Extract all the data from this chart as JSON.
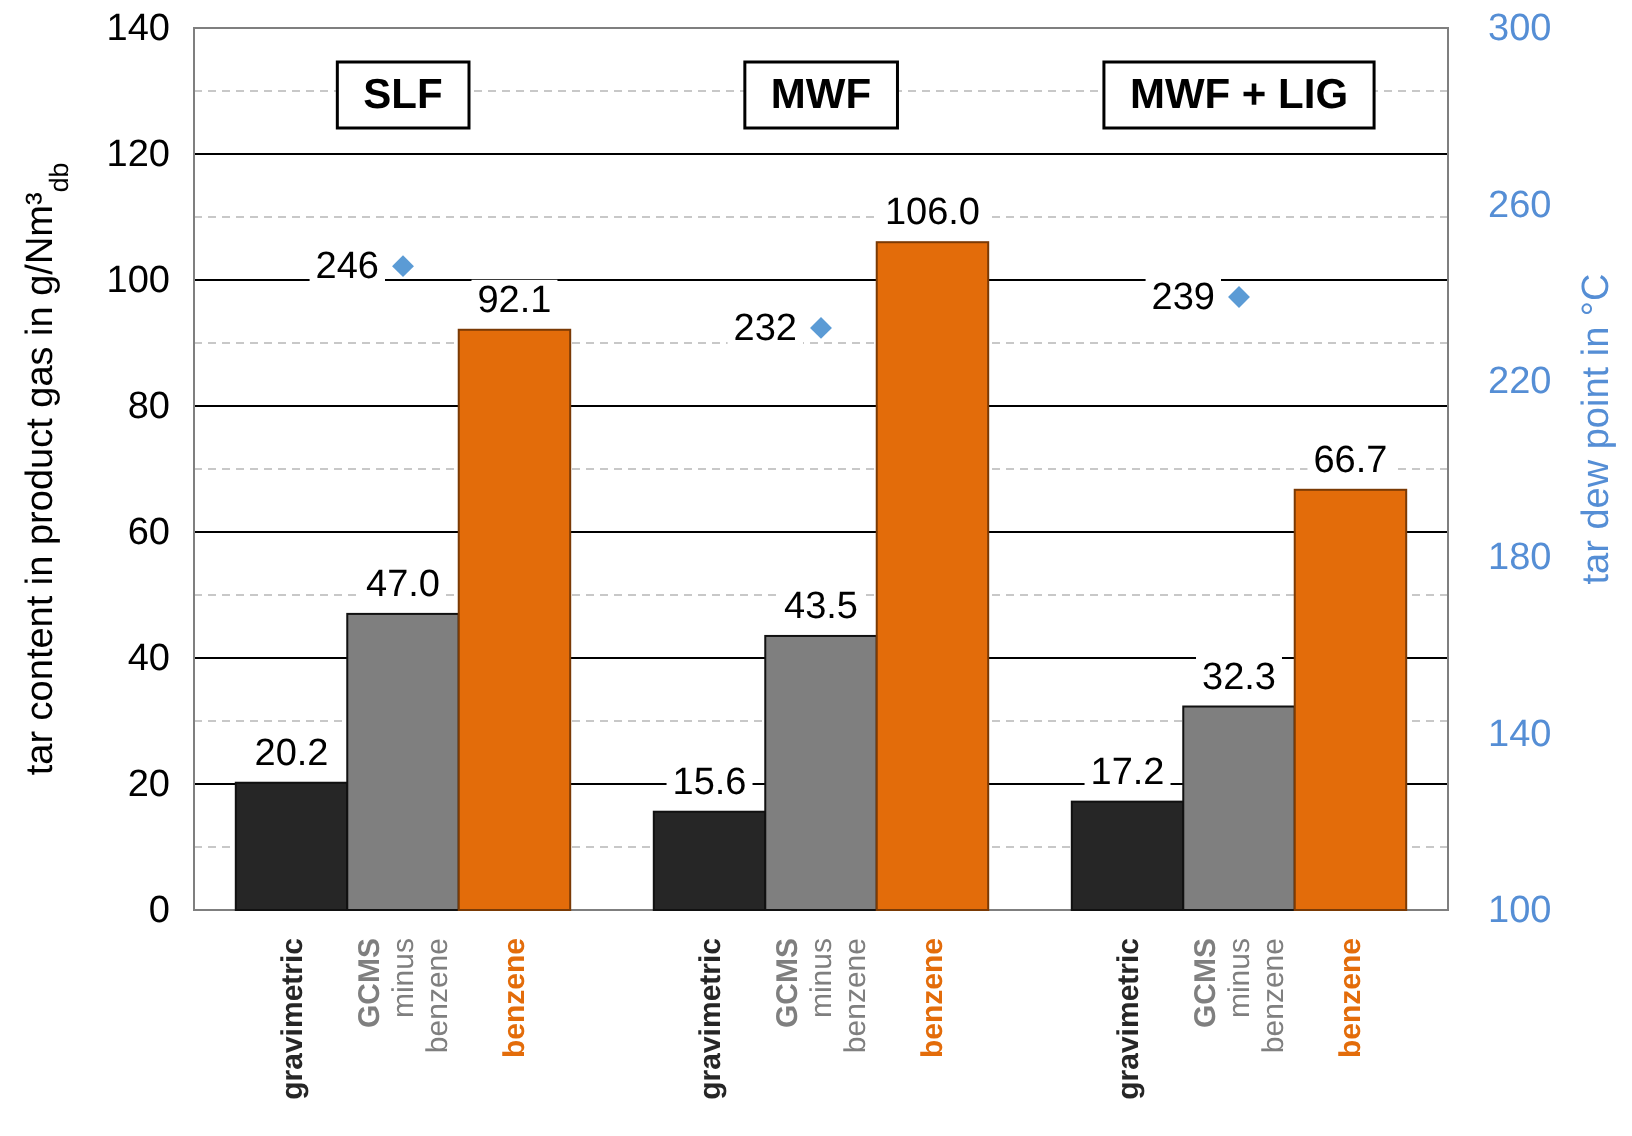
{
  "chart_data": {
    "type": "bar",
    "categories": [
      "SLF",
      "MWF",
      "MWF + LIG"
    ],
    "ylabel": "tar content in product gas in g/Nm³$_{db}$",
    "y2label": "tar dew point in °C",
    "ylim": [
      0,
      140
    ],
    "yticks": [
      0,
      {
        "value": 10,
        "label": null
      },
      20,
      {
        "value": 30,
        "label": null
      },
      40,
      {
        "value": 50,
        "label": null
      },
      60,
      {
        "value": 70,
        "label": null
      },
      80,
      {
        "value": 90,
        "label": null
      },
      100,
      {
        "value": 110,
        "label": null
      },
      120,
      {
        "value": 130,
        "label": null
      },
      140
    ],
    "y2lim": [
      100,
      300
    ],
    "y2ticks": [
      100,
      140,
      180,
      220,
      260,
      300
    ],
    "grid": "y",
    "series": [
      {
        "name": "gravimetric",
        "color": "#262626",
        "values": [
          20.2,
          15.6,
          17.2
        ],
        "value_labels": [
          "20.2",
          "15.6",
          "17.2"
        ]
      },
      {
        "name": "GCMS minus benzene",
        "color": "#7f7f7f",
        "values": [
          47.0,
          43.5,
          32.3
        ],
        "value_labels": [
          "47.0",
          "43.5",
          "32.3"
        ]
      },
      {
        "name": "benzene",
        "color": "#e36c0a",
        "values": [
          92.1,
          106.0,
          66.7
        ],
        "value_labels": [
          "92.1",
          "106.0",
          "66.7"
        ]
      },
      {
        "type": "scatter",
        "axis": "y2",
        "marker": "diamond",
        "color": "#5b9bd5",
        "values": [
          246,
          232,
          239
        ],
        "value_labels": [
          "246",
          "232",
          "239"
        ]
      }
    ]
  }
}
